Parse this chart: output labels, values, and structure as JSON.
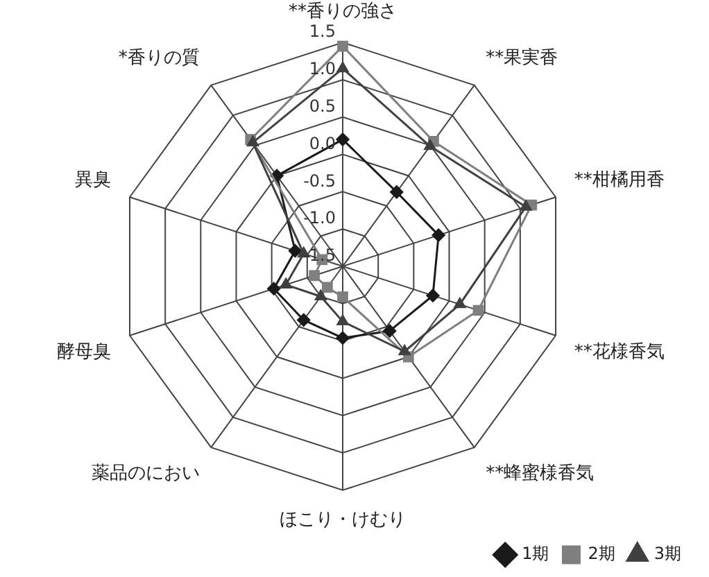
{
  "chart_data": {
    "type": "radar",
    "categories": [
      "**香りの強さ",
      "**果実香",
      "**柑橘用香",
      "**花様香気",
      "**蜂蜜様香気",
      "ほこり・けむり",
      "薬品のにおい",
      "酵母臭",
      "異臭",
      "*香りの質"
    ],
    "ylim": [
      -1.5,
      1.5
    ],
    "yticks": [
      -1.5,
      {
        "value": -1,
        "label": "-1.0"
      },
      -0.5,
      {
        "value": 0,
        "label": "0.0"
      },
      0.5,
      {
        "value": 1,
        "label": "1.0"
      },
      1.5
    ],
    "grid": true,
    "legend": "bottom right",
    "series": [
      {
        "name": "1期",
        "color": "#1a1a1a",
        "marker": "diamond",
        "values": [
          0.2,
          -0.27,
          -0.15,
          -0.23,
          -0.43,
          -0.54,
          -0.61,
          -0.53,
          -0.83,
          0.0
        ]
      },
      {
        "name": "2期",
        "color": "#7f7f7f",
        "marker": "square",
        "values": [
          1.45,
          0.57,
          1.16,
          0.41,
          0.0,
          -1.09,
          -1.15,
          -1.1,
          -1.21,
          0.6
        ]
      },
      {
        "name": "3期",
        "color": "#404040",
        "marker": "triangle",
        "values": [
          1.15,
          0.49,
          1.08,
          0.15,
          -0.09,
          -0.76,
          -1.0,
          -0.7,
          -0.95,
          0.55
        ]
      }
    ]
  }
}
